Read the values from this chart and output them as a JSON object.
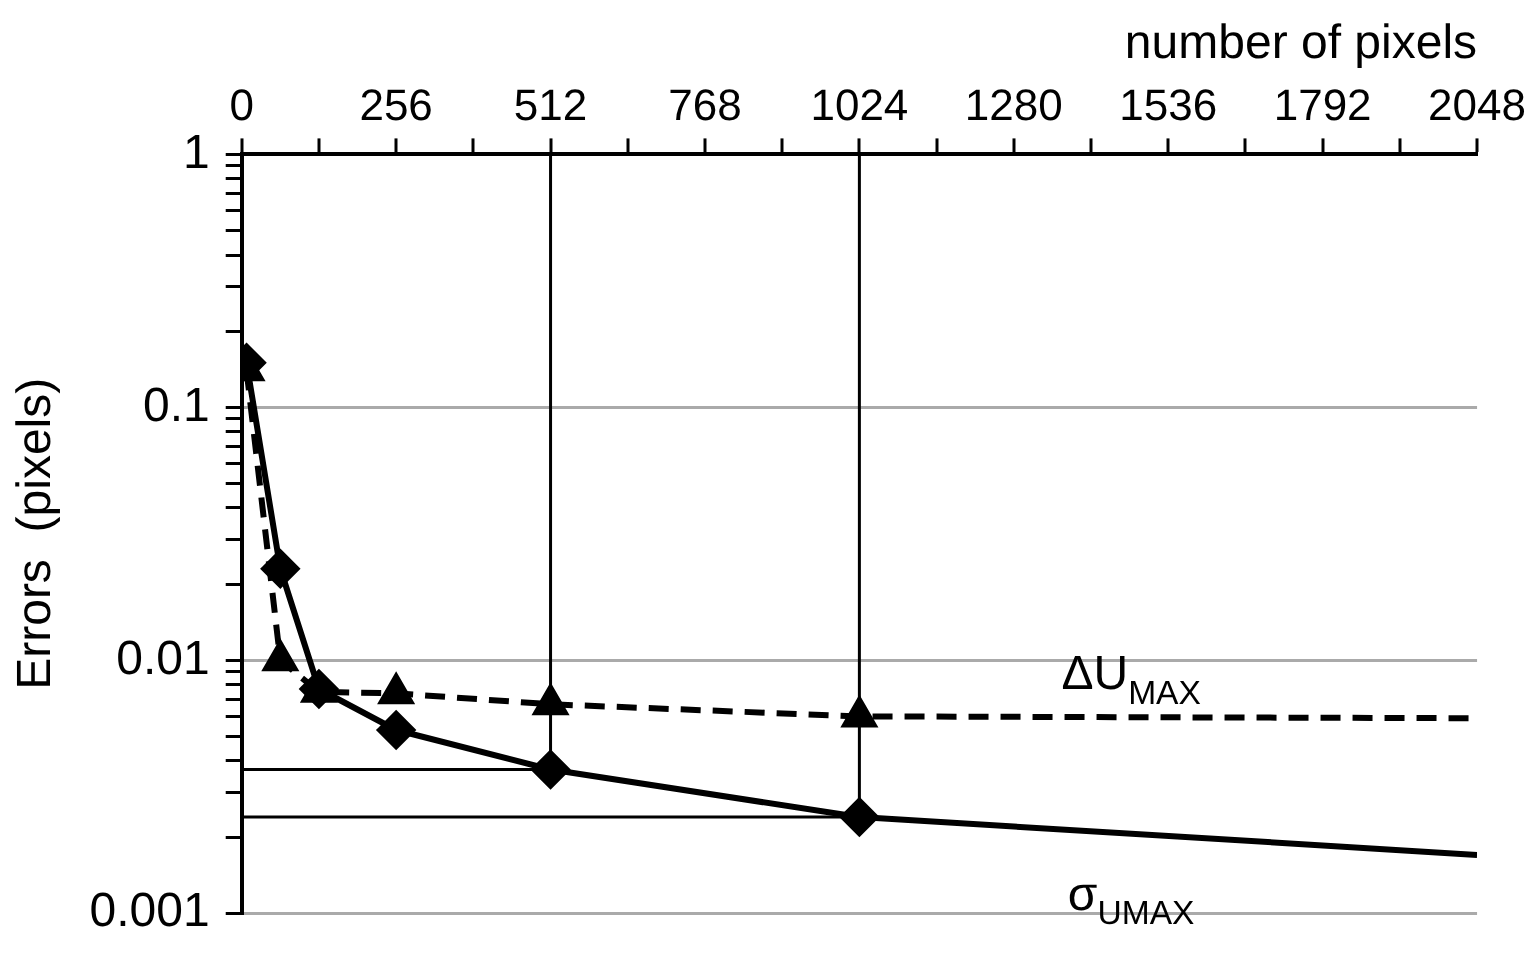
{
  "chart_data": {
    "type": "line",
    "xlabel": "number of pixels",
    "ylabel": "Errors  (pixels)",
    "log": "y",
    "grid": "y",
    "legend": false,
    "xlim": [
      0,
      2048
    ],
    "xticks": [
      0,
      {
        "value": 128,
        "label": null
      },
      256,
      {
        "value": 384,
        "label": null
      },
      512,
      {
        "value": 640,
        "label": null
      },
      768,
      {
        "value": 896,
        "label": null
      },
      1024,
      {
        "value": 1152,
        "label": null
      },
      1280,
      {
        "value": 1408,
        "label": null
      },
      1536,
      {
        "value": 1664,
        "label": null
      },
      1792,
      {
        "value": 1920,
        "label": null
      },
      2048
    ],
    "ylim": [
      0.001,
      1
    ],
    "yticks": [
      {
        "value": 0.001,
        "label": "0.001"
      },
      {
        "value": 0.002,
        "label": null
      },
      {
        "value": 0.003,
        "label": null
      },
      {
        "value": 0.004,
        "label": null
      },
      {
        "value": 0.005,
        "label": null
      },
      {
        "value": 0.006,
        "label": null
      },
      {
        "value": 0.007,
        "label": null
      },
      {
        "value": 0.008,
        "label": null
      },
      {
        "value": 0.009,
        "label": null
      },
      {
        "value": 0.01,
        "label": "0.01"
      },
      {
        "value": 0.02,
        "label": null
      },
      {
        "value": 0.03,
        "label": null
      },
      {
        "value": 0.04,
        "label": null
      },
      {
        "value": 0.05,
        "label": null
      },
      {
        "value": 0.06,
        "label": null
      },
      {
        "value": 0.07,
        "label": null
      },
      {
        "value": 0.08,
        "label": null
      },
      {
        "value": 0.09,
        "label": null
      },
      {
        "value": 0.1,
        "label": "0.1"
      },
      {
        "value": 0.2,
        "label": null
      },
      {
        "value": 0.3,
        "label": null
      },
      {
        "value": 0.4,
        "label": null
      },
      {
        "value": 0.5,
        "label": null
      },
      {
        "value": 0.6,
        "label": null
      },
      {
        "value": 0.7,
        "label": null
      },
      {
        "value": 0.8,
        "label": null
      },
      {
        "value": 0.9,
        "label": null
      },
      {
        "value": 1,
        "label": "1"
      }
    ],
    "series": [
      {
        "name": "ΔU$_{MAX}$",
        "color": "#000000",
        "marker": "triangle",
        "line_style": "dashed",
        "x": [
          8,
          64,
          128,
          256,
          512,
          1024,
          2048
        ],
        "values": [
          0.14,
          0.01,
          0.0075,
          0.0074,
          0.0067,
          0.006,
          0.0059
        ]
      },
      {
        "name": "σ$_{UMAX}$",
        "color": "#000000",
        "marker": "diamond",
        "line_style": "solid",
        "x": [
          8,
          64,
          128,
          256,
          512,
          1024,
          2048
        ],
        "values": [
          0.15,
          0.023,
          0.0077,
          0.0053,
          0.0037,
          0.0024,
          0.0017
        ]
      }
    ],
    "ref_lines": [
      {
        "axis": "x",
        "value": 512,
        "color": "#000000"
      },
      {
        "axis": "x",
        "value": 1024,
        "color": "#000000"
      },
      {
        "axis": "y",
        "value": 0.0037,
        "color": "#000000"
      },
      {
        "axis": "y",
        "value": 0.0024,
        "color": "#000000"
      }
    ]
  }
}
